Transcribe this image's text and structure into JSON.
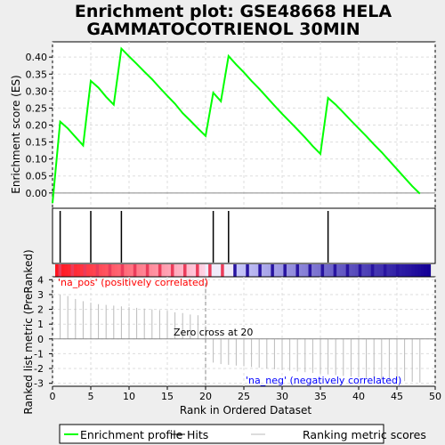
{
  "chart_data": {
    "type": "line",
    "title_line1": "Enrichment plot: GSE48668 HELA",
    "title_line2": "GAMMATOCOTRIENOL 30MIN",
    "xlabel": "Rank in Ordered Dataset",
    "ylabel_top": "Enrichment score (ES)",
    "ylabel_bottom": "Ranked list metric (PreRanked)",
    "xlim": [
      0,
      50
    ],
    "ylim_es": [
      -0.045,
      0.445
    ],
    "ylim_metric": [
      -3.2,
      4.2
    ],
    "x_ticks": [
      0,
      5,
      10,
      15,
      20,
      25,
      30,
      35,
      40,
      45,
      50
    ],
    "es_ticks": [
      0.0,
      0.05,
      0.1,
      0.15,
      0.2,
      0.25,
      0.3,
      0.35,
      0.4
    ],
    "es_tick_labels": [
      "0.00",
      "0.05",
      "0.10",
      "0.15",
      "0.20",
      "0.25",
      "0.30",
      "0.35",
      "0.40"
    ],
    "metric_ticks": [
      -3,
      -2,
      -1,
      0,
      1,
      2,
      3,
      4
    ],
    "series": [
      {
        "name": "Enrichment profile",
        "color": "#00ff00",
        "x": [
          0,
          1,
          2,
          3,
          4,
          5,
          6,
          7,
          8,
          9,
          10,
          11,
          12,
          13,
          14,
          15,
          16,
          17,
          18,
          19,
          20,
          21,
          22,
          23,
          24,
          25,
          26,
          27,
          28,
          29,
          30,
          31,
          32,
          33,
          34,
          35,
          36,
          37,
          38,
          39,
          40,
          41,
          42,
          43,
          44,
          45,
          46,
          47,
          48
        ],
        "y": [
          -0.03,
          0.21,
          0.19,
          0.165,
          0.14,
          0.33,
          0.31,
          0.283,
          0.26,
          0.425,
          0.402,
          0.38,
          0.357,
          0.335,
          0.31,
          0.286,
          0.263,
          0.235,
          0.213,
          0.19,
          0.168,
          0.295,
          0.27,
          0.403,
          0.378,
          0.355,
          0.33,
          0.307,
          0.282,
          0.257,
          0.233,
          0.21,
          0.187,
          0.163,
          0.138,
          0.115,
          0.28,
          0.26,
          0.237,
          0.213,
          0.19,
          0.167,
          0.143,
          0.12,
          0.095,
          0.07,
          0.045,
          0.02,
          -0.002
        ]
      }
    ],
    "hits": [
      1,
      5,
      9,
      21,
      23,
      36
    ],
    "metric_values": [
      3.0,
      2.9,
      2.7,
      2.55,
      2.45,
      2.35,
      2.3,
      2.25,
      2.2,
      2.15,
      2.1,
      2.05,
      2.0,
      1.95,
      1.9,
      1.8,
      1.75,
      1.65,
      1.6,
      0.3,
      -1.6,
      -1.7,
      -1.75,
      -1.8,
      -1.85,
      -1.9,
      -1.95,
      -2.0,
      -2.05,
      -2.1,
      -2.15,
      -2.2,
      -2.25,
      -2.3,
      -2.35,
      -2.4,
      -2.45,
      -2.5,
      -2.55,
      -2.6,
      -2.65,
      -2.7,
      -2.75,
      -2.8,
      -2.8,
      -2.85,
      -2.9,
      -2.95
    ],
    "zero_cross_rank": 20,
    "zero_cross_label": "Zero cross at 20",
    "pos_label": "'na_pos' (positively correlated)",
    "neg_label": "'na_neg' (negatively correlated)",
    "pos_color": "#ff0000",
    "neg_color": "#0000ff",
    "legend": [
      {
        "name": "Enrichment profile",
        "color": "#00ff00"
      },
      {
        "name": "Hits",
        "color": "#000000"
      },
      {
        "name": "Ranking metric scores",
        "color": "#bbbbbb"
      }
    ]
  }
}
